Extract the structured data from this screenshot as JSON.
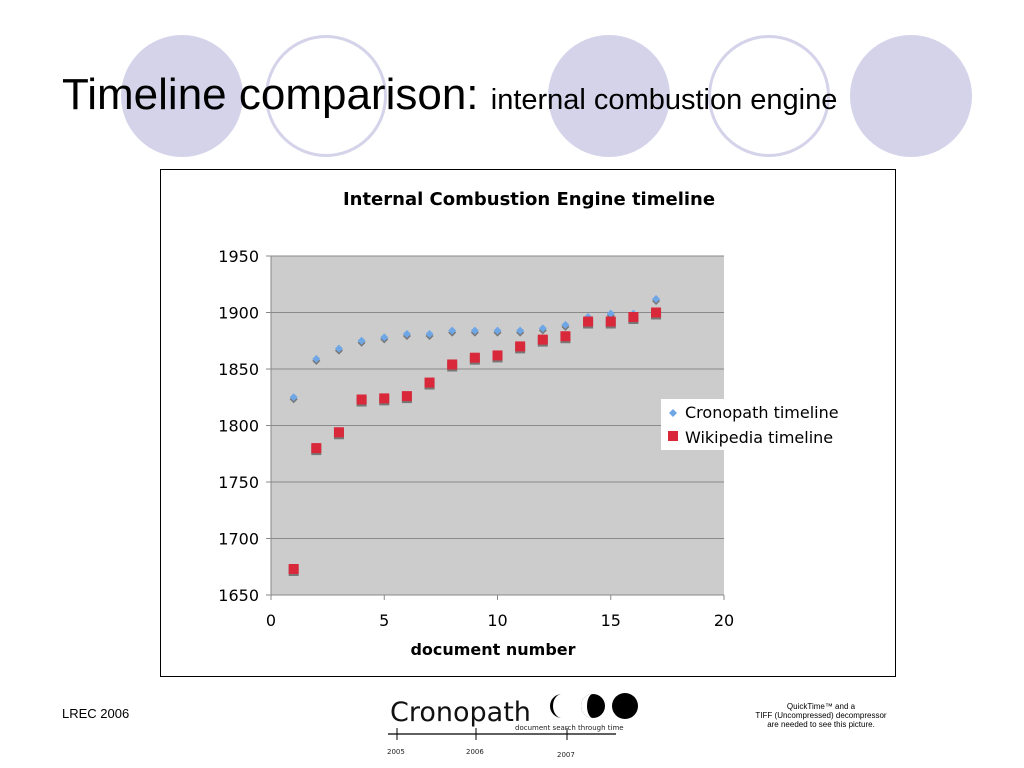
{
  "slide": {
    "title": "Timeline comparison:",
    "subtitle": "internal combustion engine",
    "footer_left": "LREC 2006",
    "quicktime_note": [
      "QuickTime™ and a",
      "TIFF (Uncompressed) decompressor",
      "are needed to see this picture."
    ],
    "logo": {
      "name": "Cronopath",
      "tagline": "document search through time",
      "years": [
        "2005",
        "2006",
        "2007"
      ]
    },
    "accent_color": "#d4d3ea"
  },
  "chart_data": {
    "type": "scatter",
    "title": "Internal Combustion Engine timeline",
    "xlabel": "document number",
    "ylabel": "",
    "xlim": [
      0,
      20
    ],
    "ylim": [
      1650,
      1950
    ],
    "x_ticks": [
      0,
      5,
      10,
      15,
      20
    ],
    "y_ticks": [
      1650,
      1700,
      1750,
      1800,
      1850,
      1900,
      1950
    ],
    "grid": true,
    "plot_background": "#cccccc",
    "legend_position": "right",
    "series": [
      {
        "name": "Cronopath timeline",
        "marker": "diamond",
        "color": "#6ea6e6",
        "x": [
          1,
          2,
          3,
          4,
          5,
          6,
          7,
          8,
          9,
          10,
          11,
          12,
          13,
          14,
          15,
          16,
          17
        ],
        "y": [
          1825,
          1859,
          1868,
          1875,
          1878,
          1881,
          1881,
          1884,
          1884,
          1884,
          1884,
          1886,
          1889,
          1896,
          1899,
          1899,
          1912
        ]
      },
      {
        "name": "Wikipedia timeline",
        "marker": "square",
        "color": "#d8283a",
        "x": [
          1,
          2,
          3,
          4,
          5,
          6,
          7,
          8,
          9,
          10,
          11,
          12,
          13,
          14,
          15,
          16,
          17
        ],
        "y": [
          1673,
          1780,
          1794,
          1823,
          1824,
          1826,
          1838,
          1854,
          1860,
          1862,
          1870,
          1876,
          1879,
          1892,
          1892,
          1896,
          1900
        ]
      }
    ]
  }
}
